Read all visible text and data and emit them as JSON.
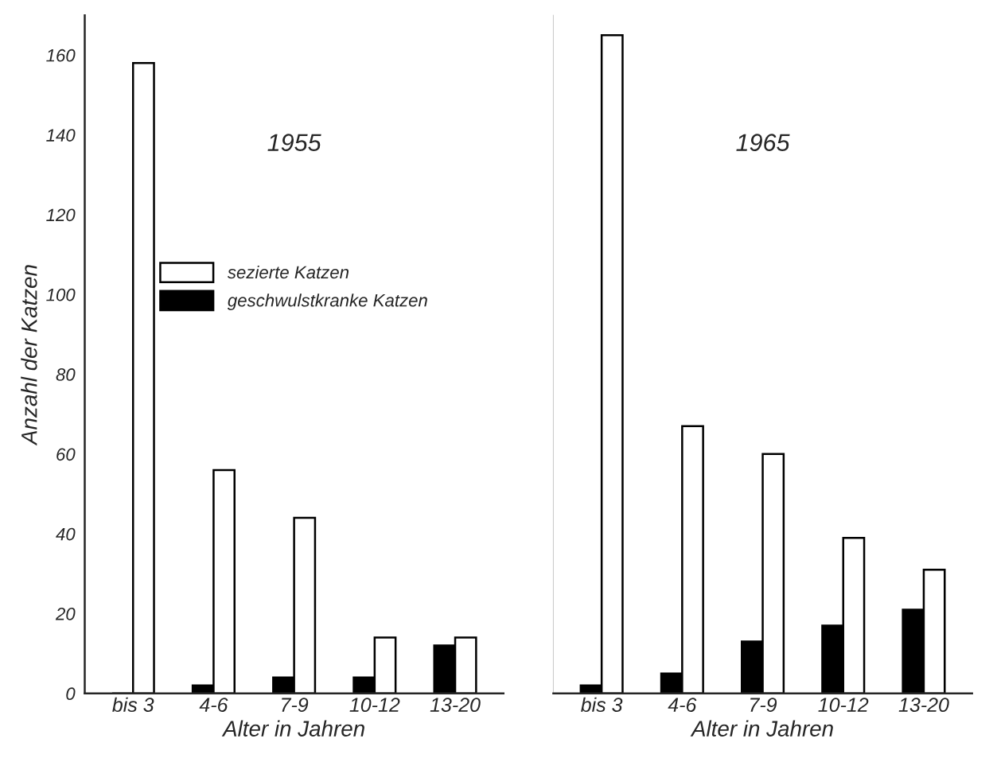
{
  "chart_data": [
    {
      "type": "bar",
      "title": "1955",
      "xlabel": "Alter in Jahren",
      "ylabel": "Anzahl der Katzen",
      "categories": [
        "bis 3",
        "4-6",
        "7-9",
        "10-12",
        "13-20"
      ],
      "ylim": [
        0,
        170
      ],
      "yticks": [
        0,
        20,
        40,
        60,
        80,
        100,
        120,
        140,
        160
      ],
      "grid": false,
      "legend": "center",
      "series": [
        {
          "name": "geschwulstkranke Katzen",
          "color": "#000000",
          "values": [
            0,
            2,
            4,
            4,
            12
          ]
        },
        {
          "name": "sezierte Katzen",
          "color": "#ffffff",
          "values": [
            158,
            56,
            44,
            14,
            14
          ]
        }
      ]
    },
    {
      "type": "bar",
      "title": "1965",
      "xlabel": "Alter in Jahren",
      "categories": [
        "bis 3",
        "4-6",
        "7-9",
        "10-12",
        "13-20"
      ],
      "ylim": [
        0,
        170
      ],
      "yticks": [
        0,
        20,
        40,
        60,
        80,
        100,
        120,
        140,
        160
      ],
      "tick_labels": "x",
      "grid": false,
      "legend": false,
      "series": [
        {
          "color": "#000000",
          "values": [
            2,
            5,
            13,
            17,
            21
          ]
        },
        {
          "color": "#ffffff",
          "values": [
            165,
            67,
            60,
            39,
            31
          ]
        }
      ]
    }
  ]
}
